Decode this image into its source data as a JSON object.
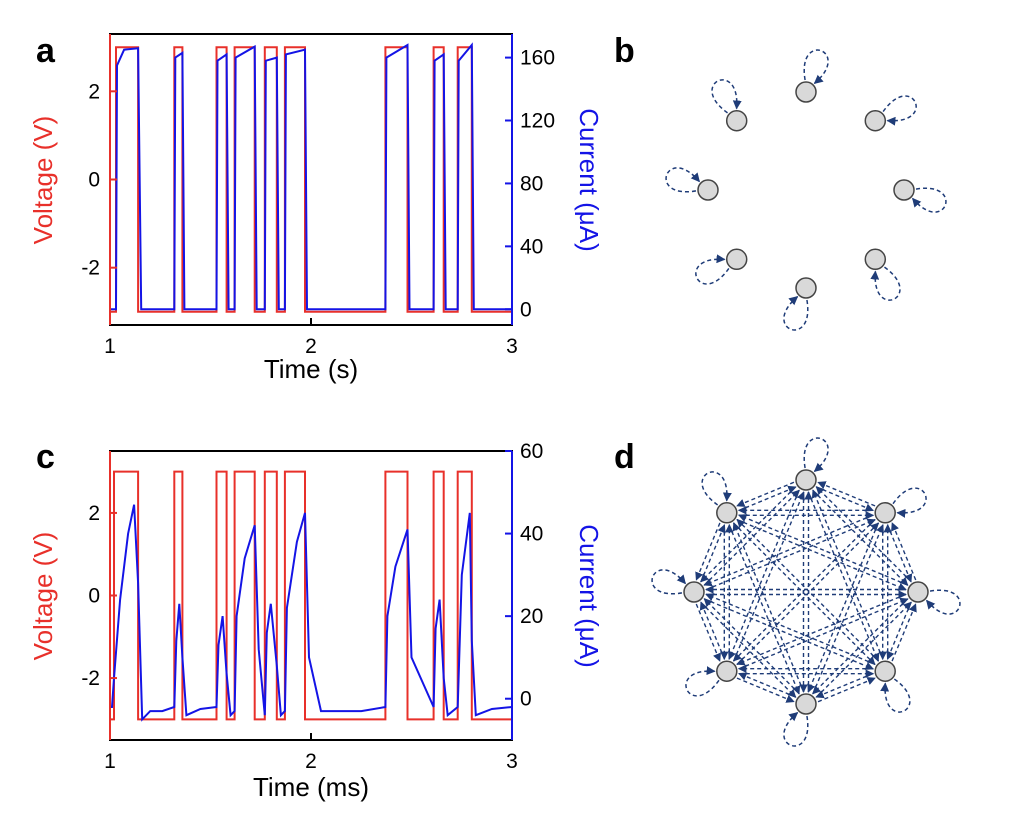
{
  "colors": {
    "voltage": "#e8302a",
    "current": "#1414e6",
    "axis": "#000000",
    "node_fill": "#d9d9d9",
    "node_stroke": "#444444",
    "edge": "#1f3c78"
  },
  "panel_labels": {
    "a": "a",
    "b": "b",
    "c": "c",
    "d": "d"
  },
  "chart_data": [
    {
      "panel": "a",
      "type": "line",
      "xlabel": "Time (s)",
      "ylabel_left": "Voltage (V)",
      "ylabel_right": "Current (μA)",
      "xlim": [
        1,
        3
      ],
      "ylim_left": [
        -3.3,
        3.3
      ],
      "ylim_right": [
        -10,
        175
      ],
      "xticks": [
        "1",
        "2",
        "3"
      ],
      "yticks_left": [
        "2",
        "0",
        "-2"
      ],
      "yticks_right": [
        "160",
        "120",
        "80",
        "40",
        "0"
      ],
      "series": [
        {
          "name": "Voltage (V)",
          "axis": "left",
          "x": [
            1.0,
            1.03,
            1.03,
            1.14,
            1.14,
            1.32,
            1.32,
            1.36,
            1.36,
            1.53,
            1.53,
            1.58,
            1.58,
            1.62,
            1.62,
            1.72,
            1.72,
            1.77,
            1.77,
            1.83,
            1.83,
            1.87,
            1.87,
            1.97,
            1.97,
            2.37,
            2.37,
            2.48,
            2.48,
            2.61,
            2.61,
            2.66,
            2.66,
            2.73,
            2.73,
            2.8,
            2.8,
            3.0
          ],
          "y": [
            -3,
            -3,
            3,
            3,
            -3,
            -3,
            3,
            3,
            -3,
            -3,
            3,
            3,
            -3,
            -3,
            3,
            3,
            -3,
            -3,
            3,
            3,
            -3,
            -3,
            3,
            3,
            -3,
            -3,
            3,
            3,
            -3,
            -3,
            3,
            3,
            -3,
            -3,
            3,
            3,
            -3,
            -3
          ]
        },
        {
          "name": "Current (μA)",
          "axis": "right",
          "x": [
            1.0,
            1.03,
            1.035,
            1.07,
            1.14,
            1.155,
            1.32,
            1.325,
            1.36,
            1.37,
            1.53,
            1.535,
            1.58,
            1.59,
            1.62,
            1.625,
            1.72,
            1.73,
            1.77,
            1.775,
            1.83,
            1.84,
            1.87,
            1.875,
            1.97,
            1.98,
            2.37,
            2.375,
            2.48,
            2.49,
            2.61,
            2.615,
            2.66,
            2.67,
            2.73,
            2.735,
            2.8,
            2.81,
            3.0
          ],
          "y": [
            0,
            0,
            155,
            165,
            166,
            0,
            0,
            160,
            163,
            0,
            0,
            158,
            162,
            0,
            0,
            160,
            167,
            0,
            0,
            158,
            160,
            0,
            0,
            162,
            165,
            0,
            0,
            160,
            168,
            0,
            0,
            158,
            162,
            0,
            0,
            158,
            168,
            0,
            0
          ]
        }
      ]
    },
    {
      "panel": "c",
      "type": "line",
      "xlabel": "Time (ms)",
      "ylabel_left": "Voltage (V)",
      "ylabel_right": "Current (μA)",
      "xlim": [
        1,
        3
      ],
      "ylim_left": [
        -3.5,
        3.5
      ],
      "ylim_right": [
        -10,
        60
      ],
      "xticks": [
        "1",
        "2",
        "3"
      ],
      "yticks_left": [
        "2",
        "0",
        "-2"
      ],
      "yticks_right": [
        "60",
        "40",
        "20",
        "0"
      ],
      "series": [
        {
          "name": "Voltage (V)",
          "axis": "left",
          "x": [
            1.0,
            1.02,
            1.02,
            1.14,
            1.14,
            1.32,
            1.32,
            1.36,
            1.36,
            1.53,
            1.53,
            1.58,
            1.58,
            1.62,
            1.62,
            1.72,
            1.72,
            1.77,
            1.77,
            1.83,
            1.83,
            1.87,
            1.87,
            1.97,
            1.97,
            2.37,
            2.37,
            2.48,
            2.48,
            2.61,
            2.61,
            2.66,
            2.66,
            2.73,
            2.73,
            2.8,
            2.8,
            3.0
          ],
          "y": [
            -3,
            -3,
            3,
            3,
            -3,
            -3,
            3,
            3,
            -3,
            -3,
            3,
            3,
            -3,
            -3,
            3,
            3,
            -3,
            -3,
            3,
            3,
            -3,
            -3,
            3,
            3,
            -3,
            -3,
            3,
            3,
            -3,
            -3,
            3,
            3,
            -3,
            -3,
            3,
            3,
            -3,
            -3
          ]
        },
        {
          "name": "Current (μA)",
          "axis": "right",
          "x": [
            1.0,
            1.01,
            1.02,
            1.05,
            1.09,
            1.12,
            1.14,
            1.16,
            1.2,
            1.26,
            1.32,
            1.33,
            1.345,
            1.36,
            1.38,
            1.45,
            1.53,
            1.54,
            1.56,
            1.58,
            1.6,
            1.62,
            1.63,
            1.67,
            1.72,
            1.74,
            1.77,
            1.78,
            1.8,
            1.83,
            1.85,
            1.87,
            1.88,
            1.93,
            1.97,
            1.99,
            2.05,
            2.15,
            2.25,
            2.37,
            2.38,
            2.42,
            2.48,
            2.5,
            2.61,
            2.62,
            2.64,
            2.66,
            2.68,
            2.73,
            2.75,
            2.79,
            2.8,
            2.82,
            2.9,
            3.0
          ],
          "y": [
            -2,
            -2,
            5,
            24,
            40,
            47,
            28,
            -5,
            -3,
            -3,
            -2,
            14,
            23,
            10,
            -4,
            -2.5,
            -2,
            13,
            20,
            6,
            -4,
            -3,
            20,
            34,
            42,
            12,
            -4,
            16,
            23,
            8,
            -4,
            -3,
            22,
            38,
            45,
            10,
            -3,
            -3,
            -3,
            -2,
            20,
            32,
            41,
            10,
            -2,
            17,
            24,
            5,
            -4,
            -2,
            30,
            45,
            14,
            -4,
            -2.5,
            -2
          ]
        }
      ]
    }
  ],
  "graph_b": {
    "type": "diagram",
    "nodes": 8,
    "connectivity": "self-loops only"
  },
  "graph_d": {
    "type": "diagram",
    "nodes": 8,
    "connectivity": "all-to-all with self-loops"
  }
}
